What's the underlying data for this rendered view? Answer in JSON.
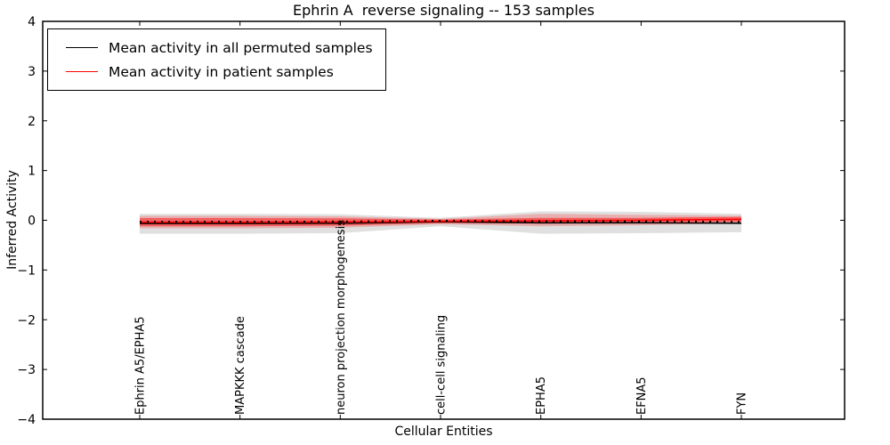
{
  "figure": {
    "background": "#ffffff"
  },
  "chart_data": {
    "type": "line",
    "title": "Ephrin A  reverse signaling -- 153 samples",
    "xlabel": "Cellular Entities",
    "ylabel": "Inferred Activity",
    "ylim": [
      -4,
      4
    ],
    "yticks": [
      4,
      3,
      2,
      1,
      0,
      -1,
      -2,
      -3,
      -4
    ],
    "grid": false,
    "legend_position": "upper left",
    "x_labels": [
      "Ephrin A5/EPHA5",
      "MAPKKK cascade",
      "neuron projection morphogenesis",
      "cell-cell signaling",
      "EPHA5",
      "EFNA5",
      "FYN"
    ],
    "series": [
      {
        "key": "permuted-mean",
        "name": "Mean activity in all permuted samples",
        "color": "#000000",
        "style": "solid",
        "values": [
          -0.065,
          -0.065,
          -0.06,
          -0.03,
          -0.05,
          -0.05,
          -0.06
        ]
      },
      {
        "key": "patient-mean",
        "name": "Mean activity in patient samples",
        "color": "#ff0000",
        "style": "solid",
        "values": [
          -0.04,
          -0.04,
          -0.035,
          -0.02,
          -0.01,
          0.0,
          0.02
        ]
      },
      {
        "key": "permuted-dotted-guide",
        "name": "",
        "color": "#000000",
        "style": "dotted",
        "in_legend": false,
        "values": [
          -0.03,
          -0.03,
          -0.025,
          -0.008,
          -0.02,
          -0.02,
          -0.03
        ]
      }
    ],
    "bands": [
      {
        "name": "permuted-range",
        "color": "#000000",
        "opacity": 0.12,
        "upper": [
          0.13,
          0.13,
          0.12,
          0.05,
          0.18,
          0.17,
          0.13
        ],
        "lower": [
          -0.27,
          -0.27,
          -0.26,
          -0.12,
          -0.27,
          -0.26,
          -0.24
        ]
      },
      {
        "name": "patient-range-outer",
        "color": "#ff0000",
        "opacity": 0.22,
        "upper": [
          0.09,
          0.09,
          0.08,
          0.03,
          0.13,
          0.11,
          0.09
        ],
        "lower": [
          -0.16,
          -0.16,
          -0.15,
          -0.08,
          -0.12,
          -0.1,
          -0.06
        ]
      },
      {
        "name": "patient-range-inner",
        "color": "#ff0000",
        "opacity": 0.45,
        "upper": [
          0.045,
          0.045,
          0.04,
          0.015,
          0.05,
          0.05,
          0.07
        ],
        "lower": [
          -0.12,
          -0.12,
          -0.11,
          -0.055,
          -0.07,
          -0.05,
          -0.03
        ]
      }
    ]
  }
}
